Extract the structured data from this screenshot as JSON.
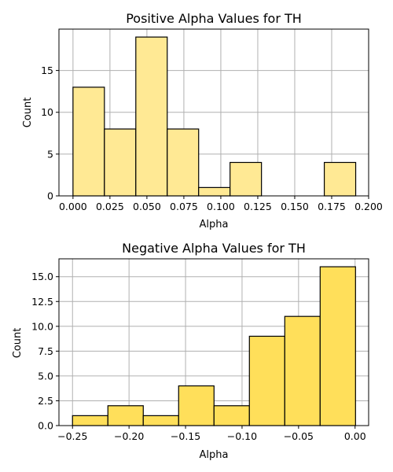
{
  "chart_data": [
    {
      "type": "bar",
      "title": "Positive Alpha Values for TH",
      "xlabel": "Alpha",
      "ylabel": "Count",
      "bin_edges": [
        0.0,
        0.02125,
        0.0425,
        0.06375,
        0.085,
        0.10625,
        0.1275,
        0.14875,
        0.17,
        0.19125
      ],
      "values": [
        13,
        8,
        19,
        8,
        1,
        4,
        0,
        0,
        4
      ],
      "xlim": [
        -0.0095,
        0.2
      ],
      "ylim": [
        0,
        19.95
      ],
      "xticks": [
        0.0,
        0.025,
        0.05,
        0.075,
        0.1,
        0.125,
        0.15,
        0.175,
        0.2
      ],
      "xtick_labels": [
        "0.000",
        "0.025",
        "0.050",
        "0.075",
        "0.100",
        "0.125",
        "0.150",
        "0.175",
        "0.200"
      ],
      "yticks": [
        0,
        5,
        10,
        15
      ],
      "ytick_labels": [
        "0",
        "5",
        "10",
        "15"
      ],
      "grid": true,
      "bar_color": "#ffe994"
    },
    {
      "type": "bar",
      "title": "Negative Alpha Values for TH",
      "xlabel": "Alpha",
      "ylabel": "Count",
      "bin_edges": [
        -0.25,
        -0.2187,
        -0.1874,
        -0.1561,
        -0.1248,
        -0.0935,
        -0.0622,
        -0.0309,
        0.0004
      ],
      "values": [
        1,
        2,
        1,
        4,
        2,
        9,
        11,
        16
      ],
      "xlim": [
        -0.262,
        0.012
      ],
      "ylim": [
        0,
        16.8
      ],
      "xticks": [
        -0.25,
        -0.2,
        -0.15,
        -0.1,
        -0.05,
        0.0
      ],
      "xtick_labels": [
        "−0.25",
        "−0.20",
        "−0.15",
        "−0.10",
        "−0.05",
        "0.00"
      ],
      "yticks": [
        0,
        2.5,
        5,
        7.5,
        10,
        12.5,
        15
      ],
      "ytick_labels": [
        "0.0",
        "2.5",
        "5.0",
        "7.5",
        "10.0",
        "12.5",
        "15.0"
      ],
      "grid": true,
      "bar_color": "#ffdf5a"
    }
  ]
}
